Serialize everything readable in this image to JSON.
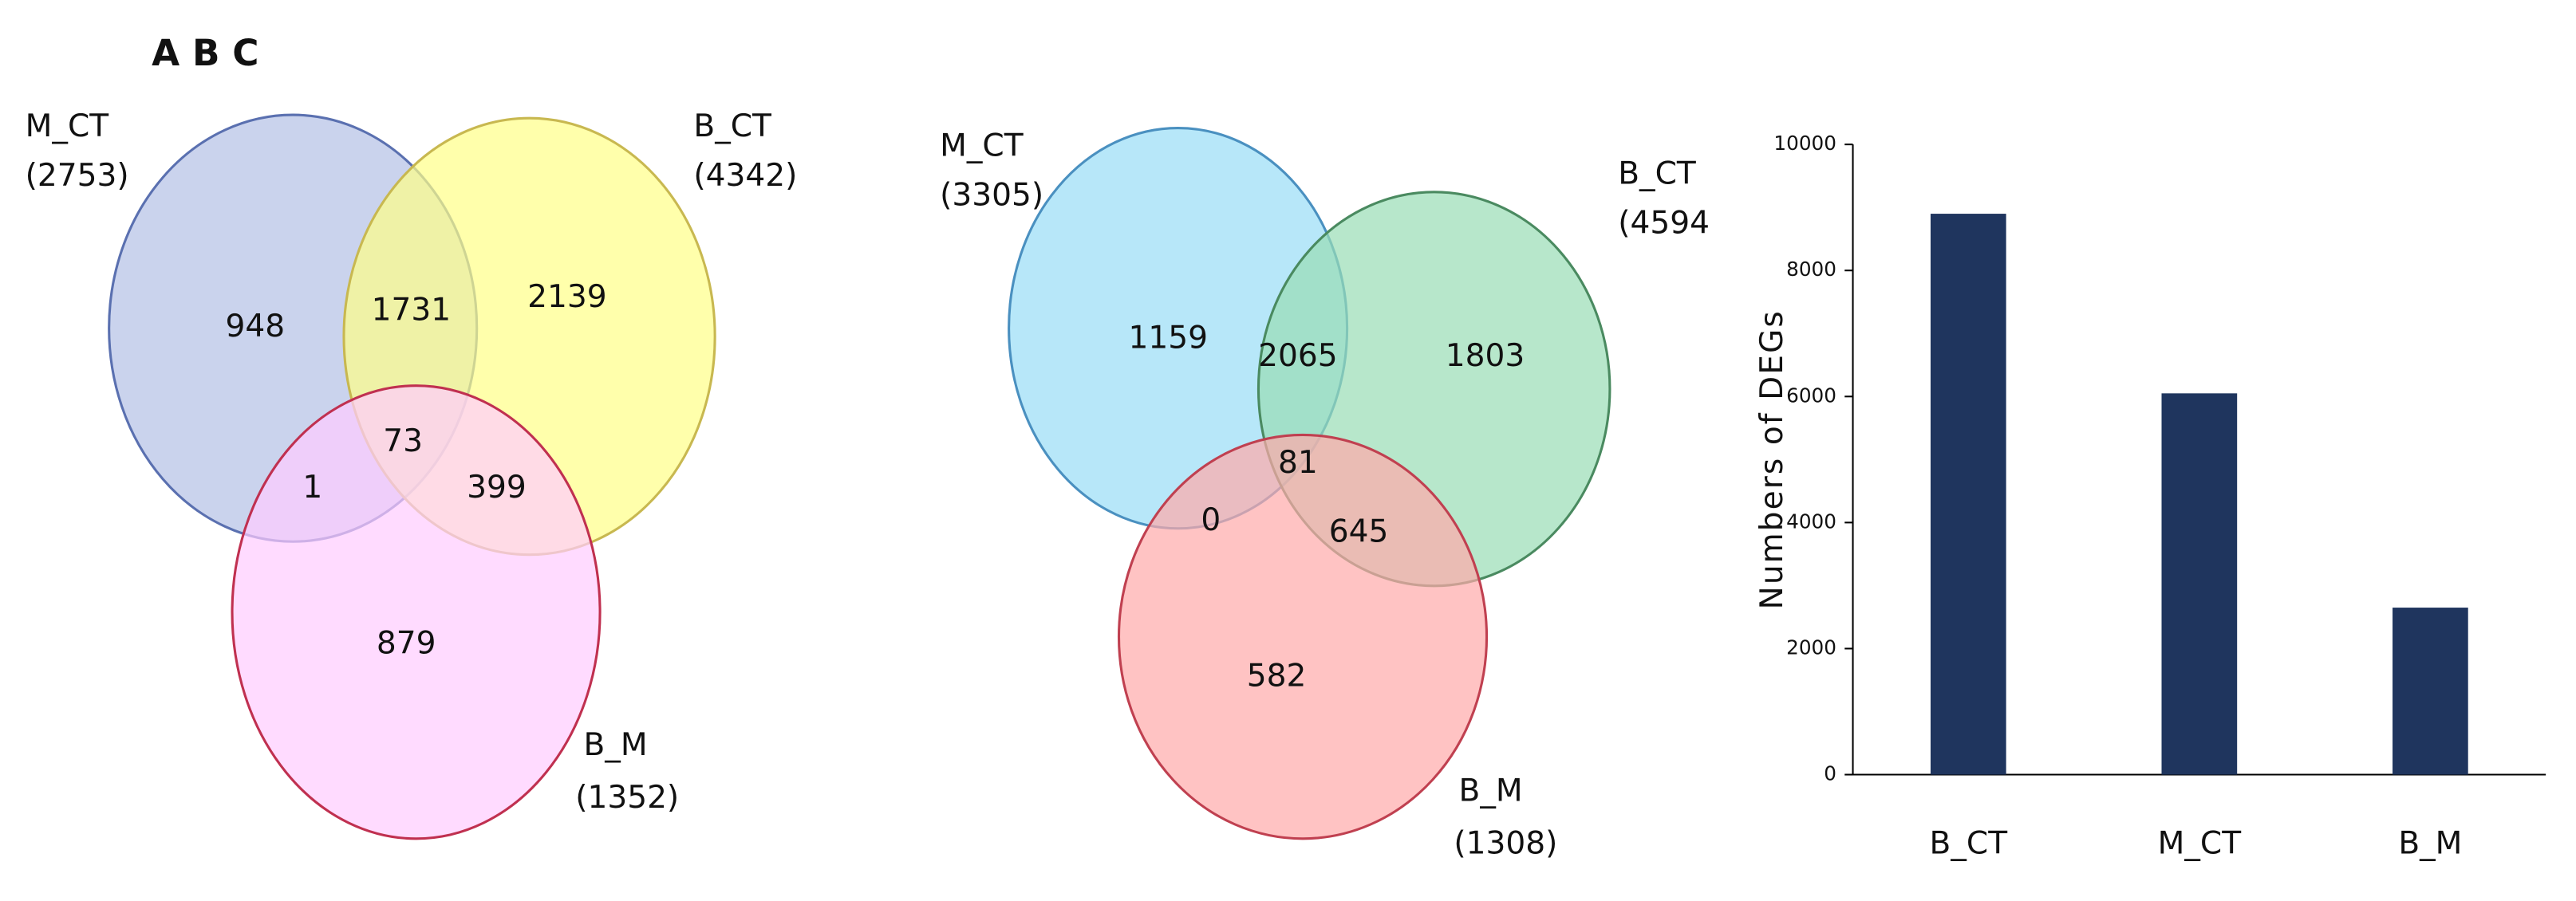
{
  "figure_label": "A B C",
  "chart_data": [
    {
      "type": "venn",
      "sets": [
        "M_CT",
        "B_CT",
        "B_M"
      ],
      "sizes": [
        2753,
        4342,
        1352
      ],
      "size_labels": [
        "(2753)",
        "(4342)",
        "(1352)"
      ],
      "colors": [
        "#b4c0e6",
        "#ffff88",
        "#ffccff"
      ],
      "regions": [
        {
          "sets": [
            "M_CT"
          ],
          "value": 948
        },
        {
          "sets": [
            "M_CT",
            "B_CT"
          ],
          "value": 1731
        },
        {
          "sets": [
            "B_CT"
          ],
          "value": 2139
        },
        {
          "sets": [
            "M_CT",
            "B_CT",
            "B_M"
          ],
          "value": 73
        },
        {
          "sets": [
            "M_CT",
            "B_M"
          ],
          "value": 1
        },
        {
          "sets": [
            "B_CT",
            "B_M"
          ],
          "value": 399
        },
        {
          "sets": [
            "B_M"
          ],
          "value": 879
        }
      ]
    },
    {
      "type": "venn",
      "sets": [
        "M_CT",
        "B_CT",
        "B_M"
      ],
      "sizes": [
        3305,
        4594,
        1308
      ],
      "size_labels": [
        "(3305)",
        "(4594",
        "(1308)"
      ],
      "colors": [
        "#99ddf7",
        "#99ddb5",
        "#ffaaaa"
      ],
      "regions": [
        {
          "sets": [
            "M_CT"
          ],
          "value": 1159
        },
        {
          "sets": [
            "M_CT",
            "B_CT"
          ],
          "value": 2065
        },
        {
          "sets": [
            "B_CT"
          ],
          "value": 1803
        },
        {
          "sets": [
            "M_CT",
            "B_CT",
            "B_M"
          ],
          "value": 81
        },
        {
          "sets": [
            "M_CT",
            "B_M"
          ],
          "value": 0
        },
        {
          "sets": [
            "B_CT",
            "B_M"
          ],
          "value": 645
        },
        {
          "sets": [
            "B_M"
          ],
          "value": 582
        }
      ]
    },
    {
      "type": "bar",
      "y_label": "Numbers of DEGs",
      "categories": [
        "B_CT",
        "M_CT",
        "B_M"
      ],
      "values": [
        8900,
        6050,
        2650
      ],
      "color": "#1f355e",
      "ylim": [
        0,
        10000
      ],
      "yticks": [
        0,
        2000,
        4000,
        6000,
        8000,
        10000
      ]
    }
  ]
}
